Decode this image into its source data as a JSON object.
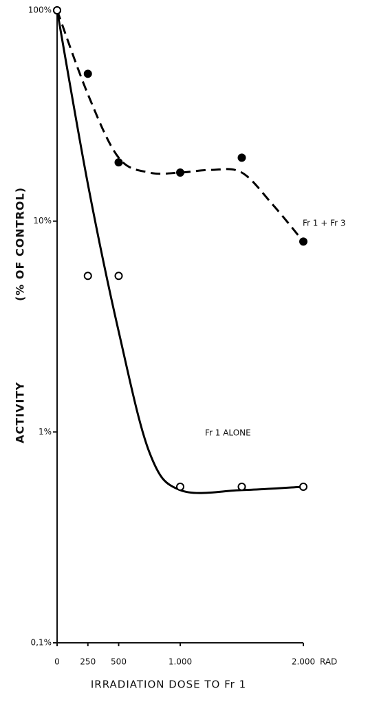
{
  "chart_data": {
    "type": "scatter",
    "log_y": true,
    "ylabel": [
      "ACTIVITY",
      "(% OF CONTROL)"
    ],
    "xlabel": "IRRADIATION DOSE TO Fr 1",
    "x_unit": "RAD",
    "xlim": [
      0,
      2000
    ],
    "ylim": [
      0.1,
      100
    ],
    "xticks": [
      0,
      250,
      500,
      {
        "value": 1000,
        "label": "1.000"
      },
      {
        "value": 2000,
        "label": "2.000"
      }
    ],
    "yticks": [
      {
        "value": 0.1,
        "label": "0,1%"
      },
      {
        "value": 1,
        "label": "1%"
      },
      {
        "value": 10,
        "label": "10%"
      },
      {
        "value": 100,
        "label": "100%"
      }
    ],
    "series": [
      {
        "name": "Fr 1 + Fr 3",
        "marker": "filled",
        "color": "#000000",
        "x": [
          0,
          250,
          500,
          1000,
          1500,
          2000
        ],
        "values": [
          100,
          50,
          19,
          17,
          20,
          8
        ]
      },
      {
        "name": "Fr 1 ALONE",
        "marker": "open",
        "color": "#000000",
        "x": [
          0,
          250,
          500,
          1000,
          1500,
          2000
        ],
        "values": [
          100,
          5.5,
          5.5,
          0.55,
          0.55,
          0.55
        ]
      }
    ],
    "fits": [
      {
        "style": "dashed",
        "color": "#000000",
        "x": [
          0,
          250,
          500,
          750,
          1000,
          1250,
          1500,
          1750,
          2000
        ],
        "values": [
          100,
          40,
          20,
          17,
          17,
          17.5,
          17,
          12,
          8
        ]
      },
      {
        "style": "solid",
        "color": "#000000",
        "x": [
          0,
          250,
          500,
          750,
          1000,
          1500,
          2000
        ],
        "values": [
          100,
          15,
          3,
          0.8,
          0.53,
          0.53,
          0.55
        ]
      }
    ]
  }
}
